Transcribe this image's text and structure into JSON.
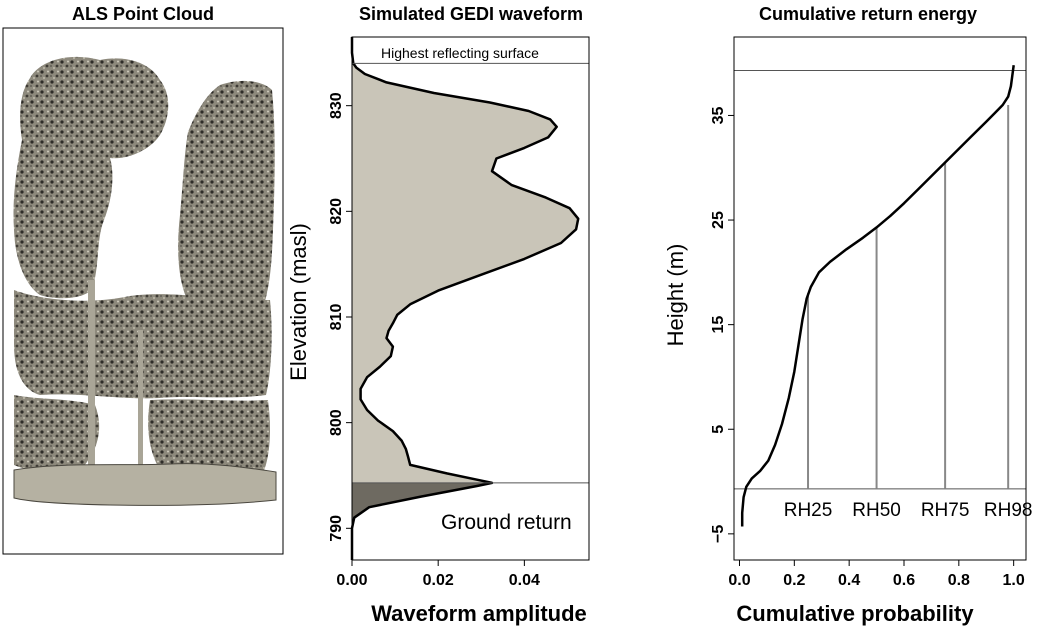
{
  "chart_data": [
    {
      "type": "other",
      "title": "ALS Point Cloud",
      "description": ""
    },
    {
      "type": "area",
      "title": "Simulated GEDI waveform",
      "xlabel": "Waveform amplitude",
      "ylabel": "Elevation (masl)",
      "xlim": [
        0.0,
        0.055
      ],
      "ylim": [
        787,
        836.5
      ],
      "xticks": [
        "0.00",
        "0.02",
        "0.04"
      ],
      "xtick_values": [
        0.0,
        0.02,
        0.04
      ],
      "yticks": [
        "790",
        "800",
        "810",
        "820",
        "830"
      ],
      "ytick_values": [
        790,
        800,
        810,
        820,
        830
      ],
      "annotations": {
        "top_line": {
          "label": "Highest reflecting surface",
          "y": 834
        },
        "ground_line": {
          "label": "Ground return",
          "y": 794.3
        }
      },
      "canopy_fill_color": "#c9c5b8",
      "ground_fill_color": "#6e6a61",
      "series": [
        {
          "elevation": [
            787,
            790,
            791,
            792,
            793,
            794,
            794.3,
            794.6,
            795.2,
            796,
            796.8,
            797.5,
            798.3,
            799.2,
            800.2,
            801.2,
            802.2,
            803.2,
            804.3,
            805.3,
            806.3,
            807.2,
            808.0,
            808.7,
            809.4,
            810.2,
            811.2,
            812.5,
            814.0,
            815.5,
            817.0,
            818.3,
            819.3,
            820.3,
            821.3,
            822.5,
            823.8,
            825.0,
            826.0,
            827.0,
            828.0,
            828.7,
            829.5,
            830.3,
            831.2,
            832.2,
            833.0,
            833.6,
            834.0,
            835.0,
            836.5
          ],
          "amplitude": [
            0.0,
            0.0,
            0.0005,
            0.004,
            0.016,
            0.029,
            0.0325,
            0.029,
            0.022,
            0.0135,
            0.013,
            0.0125,
            0.0115,
            0.0095,
            0.006,
            0.0035,
            0.002,
            0.002,
            0.0035,
            0.0065,
            0.009,
            0.0095,
            0.008,
            0.0085,
            0.0095,
            0.0105,
            0.0135,
            0.02,
            0.03,
            0.04,
            0.0485,
            0.052,
            0.0525,
            0.0505,
            0.045,
            0.037,
            0.0325,
            0.0335,
            0.04,
            0.0455,
            0.0475,
            0.046,
            0.041,
            0.032,
            0.019,
            0.008,
            0.003,
            0.001,
            0.0003,
            0.0,
            0.0
          ]
        }
      ]
    },
    {
      "type": "line",
      "title": "Cumulative return energy",
      "xlabel": "Cumulative probability",
      "ylabel": "Height (m)",
      "xlim": [
        -0.02,
        1.045
      ],
      "ylim": [
        -7.5,
        42.5
      ],
      "xticks": [
        "0.0",
        "0.2",
        "0.4",
        "0.6",
        "0.8",
        "1.0"
      ],
      "xtick_values": [
        0.0,
        0.2,
        0.4,
        0.6,
        0.8,
        1.0
      ],
      "yticks": [
        "−5",
        "5",
        "15",
        "25",
        "35"
      ],
      "ytick_values": [
        -5,
        5,
        15,
        25,
        35
      ],
      "ground_line_y": -0.7,
      "top_line_y": 39.3,
      "rh_markers": [
        {
          "label": "RH25",
          "probability": 0.25,
          "height": 18.0
        },
        {
          "label": "RH50",
          "probability": 0.5,
          "height": 24.3
        },
        {
          "label": "RH75",
          "probability": 0.75,
          "height": 30.5
        },
        {
          "label": "RH98",
          "probability": 0.98,
          "height": 36.0
        }
      ],
      "series": [
        {
          "x": [
            0.01,
            0.01,
            0.015,
            0.025,
            0.045,
            0.075,
            0.105,
            0.13,
            0.155,
            0.18,
            0.2,
            0.215,
            0.23,
            0.245,
            0.26,
            0.29,
            0.33,
            0.39,
            0.45,
            0.5,
            0.55,
            0.6,
            0.65,
            0.7,
            0.75,
            0.8,
            0.85,
            0.9,
            0.93,
            0.96,
            0.98,
            0.99,
            0.995,
            1.0
          ],
          "y": [
            -4.3,
            -3.0,
            -1.5,
            -0.5,
            0.3,
            1.0,
            2.0,
            3.5,
            5.5,
            8.0,
            10.5,
            13.0,
            15.5,
            17.5,
            18.6,
            20.0,
            21.0,
            22.2,
            23.3,
            24.3,
            25.4,
            26.6,
            27.9,
            29.2,
            30.5,
            31.8,
            33.1,
            34.4,
            35.2,
            36.0,
            36.8,
            37.8,
            38.8,
            39.8
          ]
        }
      ]
    }
  ]
}
